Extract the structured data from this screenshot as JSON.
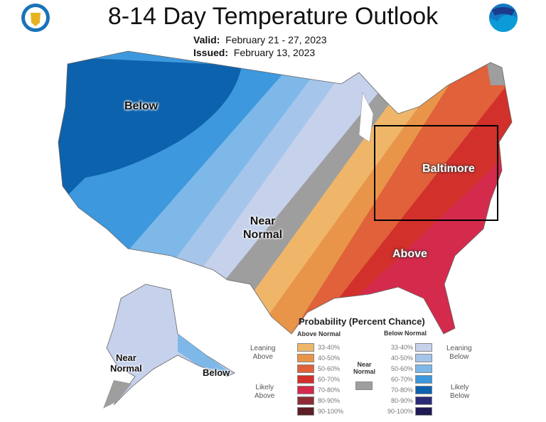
{
  "header": {
    "title": "8-14 Day Temperature Outlook",
    "valid_label": "Valid:",
    "valid_value": "February 21 - 27, 2023",
    "issued_label": "Issued:",
    "issued_value": "February 13, 2023",
    "logo_left": "department-of-commerce-seal",
    "logo_right": "NOAA"
  },
  "map_labels": {
    "below": "Below",
    "near_normal_1": "Near",
    "near_normal_2": "Normal",
    "baltimore": "Baltimore",
    "above": "Above",
    "ak_near_1": "Near",
    "ak_near_2": "Normal",
    "ak_below": "Below"
  },
  "legend": {
    "title": "Probability (Percent Chance)",
    "above_header": "Above Normal",
    "below_header": "Below Normal",
    "near_normal_1": "Near",
    "near_normal_2": "Normal",
    "near_normal_color": "#9e9e9e",
    "leaning_above_1": "Leaning",
    "leaning_above_2": "Above",
    "likely_above_1": "Likely",
    "likely_above_2": "Above",
    "leaning_below_1": "Leaning",
    "leaning_below_2": "Below",
    "likely_below_1": "Likely",
    "likely_below_2": "Below",
    "above": [
      {
        "range": "33-40%",
        "color": "#efb66a"
      },
      {
        "range": "40-50%",
        "color": "#e8954a"
      },
      {
        "range": "50-60%",
        "color": "#e0613a"
      },
      {
        "range": "60-70%",
        "color": "#d2302b"
      },
      {
        "range": "70-80%",
        "color": "#d42a4c"
      },
      {
        "range": "80-90%",
        "color": "#8e2b35"
      },
      {
        "range": "90-100%",
        "color": "#5e1e24"
      }
    ],
    "below": [
      {
        "range": "33-40%",
        "color": "#c6d1ec"
      },
      {
        "range": "40-50%",
        "color": "#a6c5ea"
      },
      {
        "range": "50-60%",
        "color": "#7db8e8"
      },
      {
        "range": "60-70%",
        "color": "#3d98dd"
      },
      {
        "range": "70-80%",
        "color": "#0d62ad"
      },
      {
        "range": "80-90%",
        "color": "#2b2b78"
      },
      {
        "range": "90-100%",
        "color": "#1e1a55"
      }
    ]
  }
}
